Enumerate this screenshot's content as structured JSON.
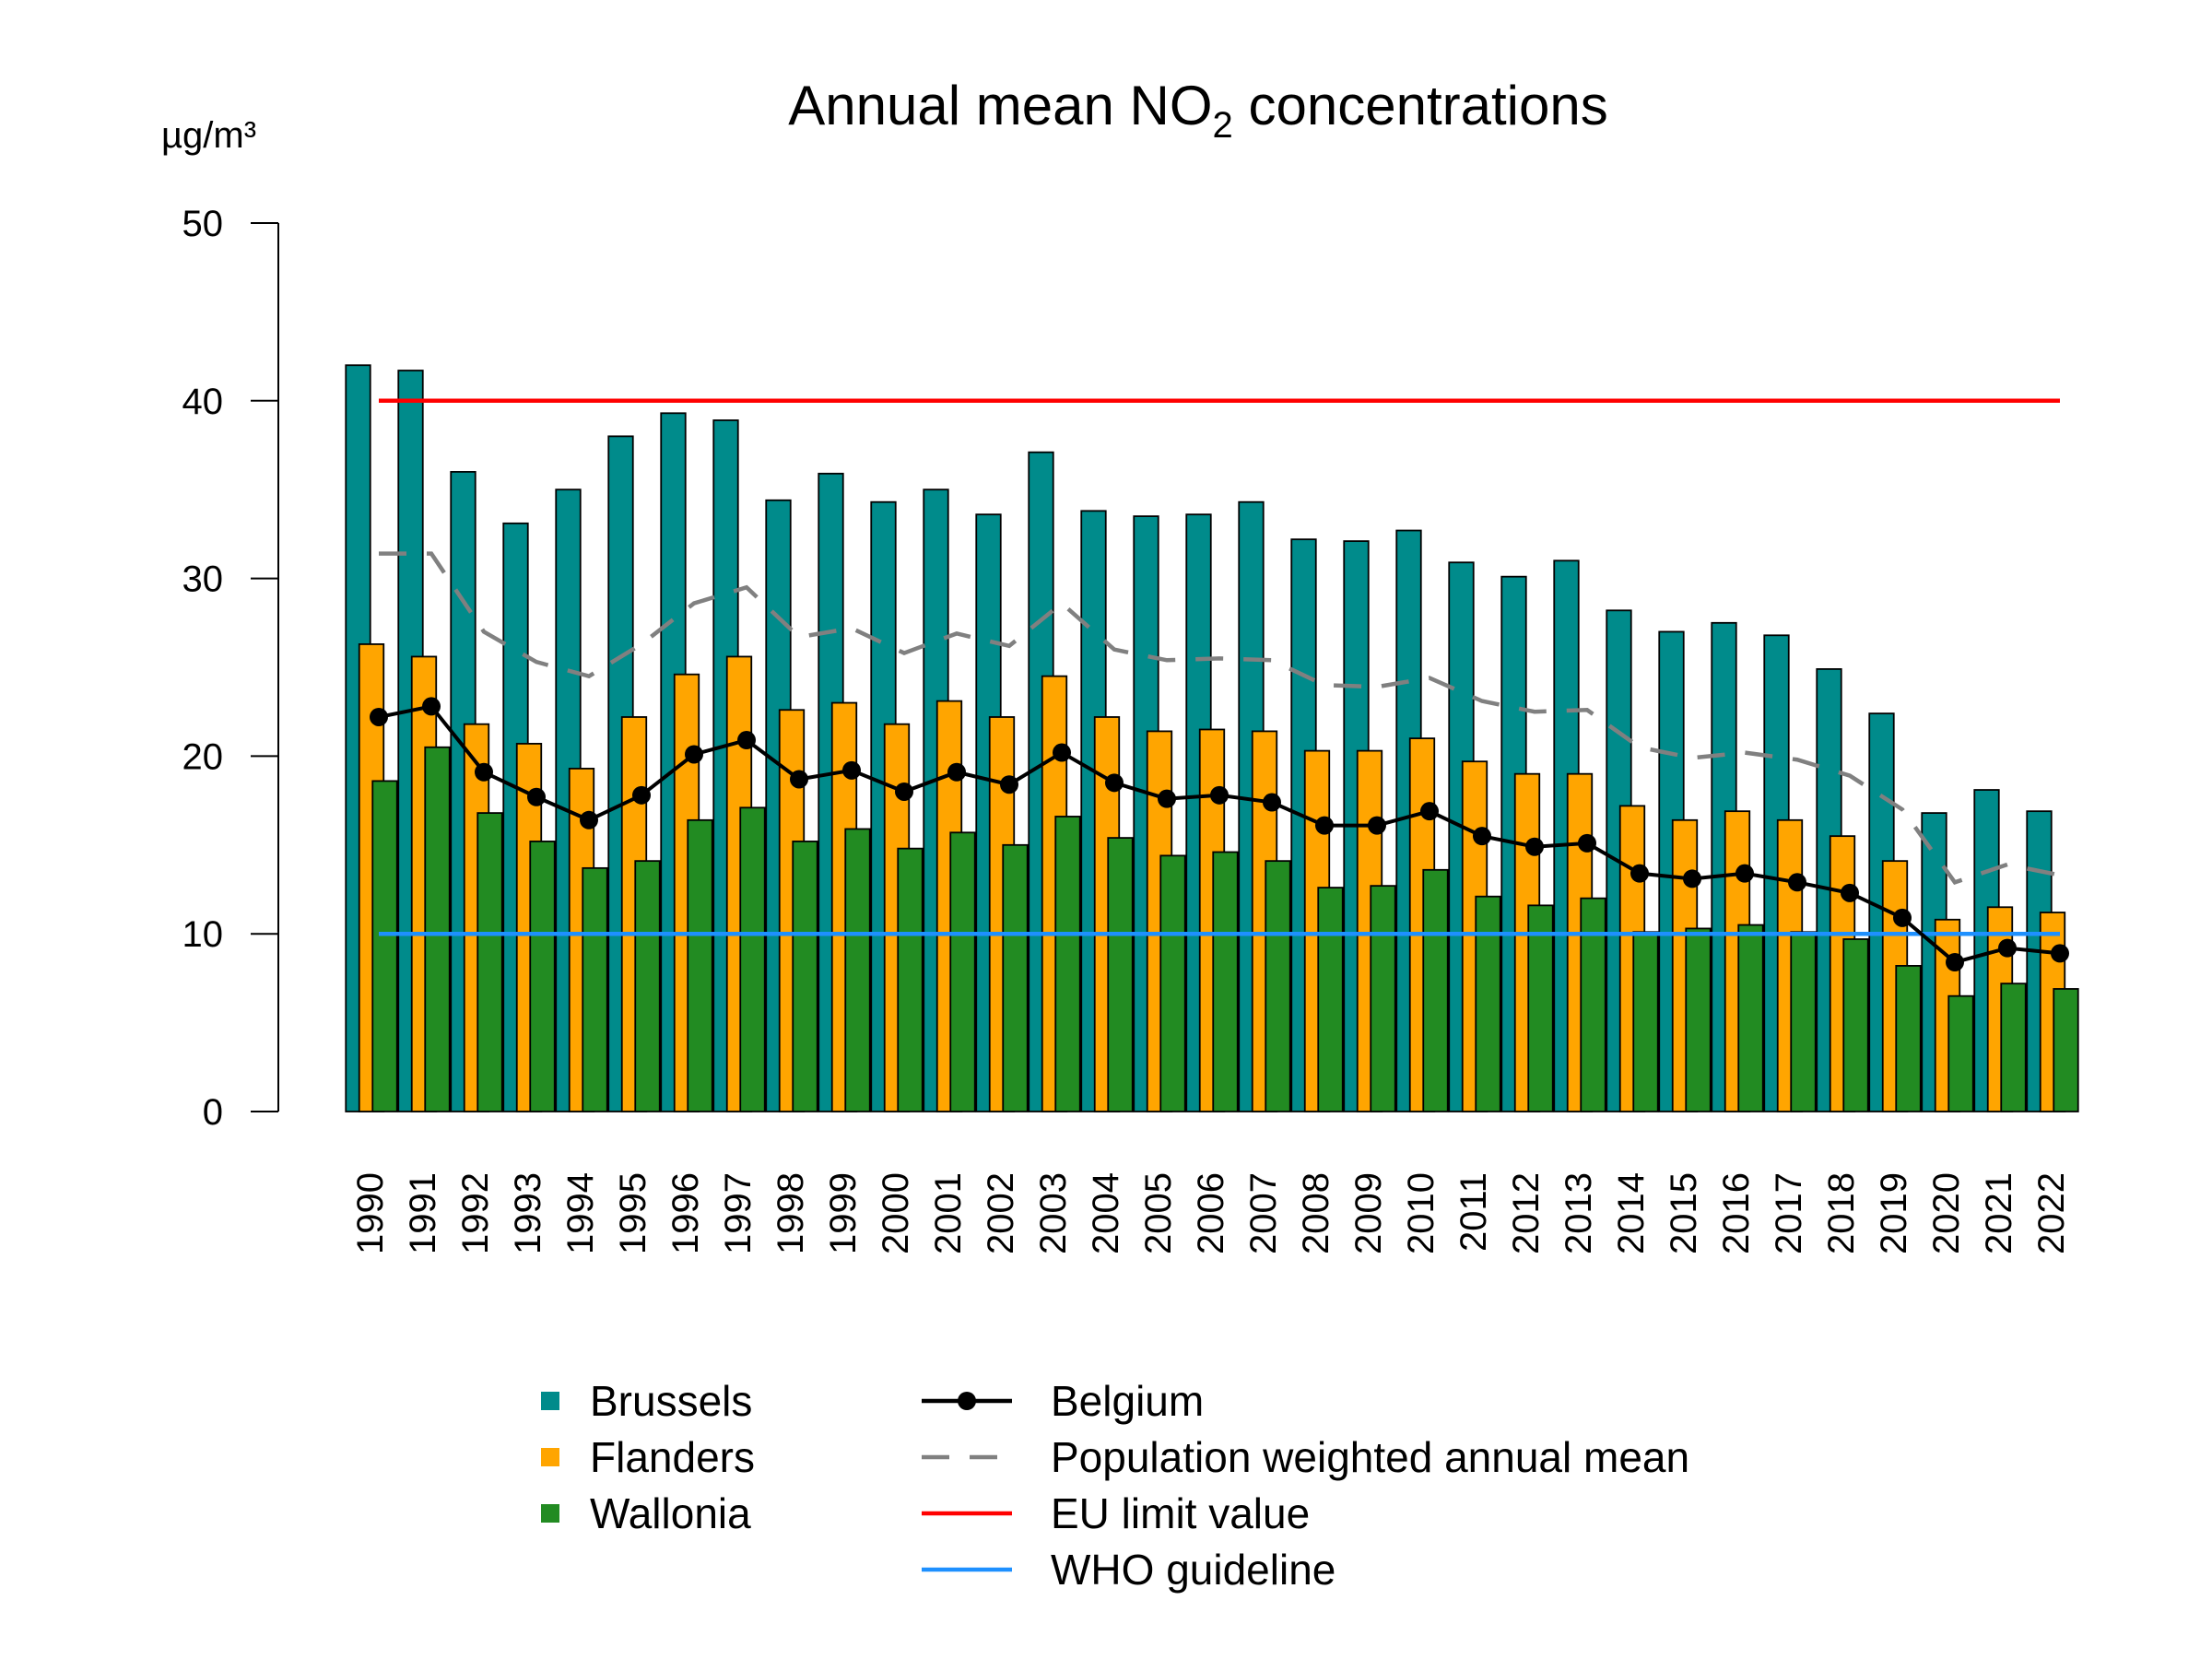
{
  "chart_data": {
    "type": "bar",
    "title": {
      "prefix": "Annual mean NO",
      "subscript": "2",
      "suffix": " concentrations"
    },
    "unit_label": "µg/m³",
    "ylim": [
      0,
      50
    ],
    "yticks": [
      "0",
      "10",
      "20",
      "30",
      "40",
      "50"
    ],
    "categories": [
      "1990",
      "1991",
      "1992",
      "1993",
      "1994",
      "1995",
      "1996",
      "1997",
      "1998",
      "1999",
      "2000",
      "2001",
      "2002",
      "2003",
      "2004",
      "2005",
      "2006",
      "2007",
      "2008",
      "2009",
      "2010",
      "2011",
      "2012",
      "2013",
      "2014",
      "2015",
      "2016",
      "2017",
      "2018",
      "2019",
      "2020",
      "2021",
      "2022"
    ],
    "series": [
      {
        "name": "Brussels",
        "color": "#008B8B",
        "values": [
          42.0,
          41.7,
          36.0,
          33.1,
          35.0,
          38.0,
          39.3,
          38.9,
          34.4,
          35.9,
          34.3,
          35.0,
          33.6,
          37.1,
          33.8,
          33.5,
          33.6,
          34.3,
          32.2,
          32.1,
          32.7,
          30.9,
          30.1,
          31.0,
          28.2,
          27.0,
          27.5,
          26.8,
          24.9,
          22.4,
          16.8,
          18.1,
          16.9
        ]
      },
      {
        "name": "Flanders",
        "color": "#FFA500",
        "values": [
          26.3,
          25.6,
          21.8,
          20.7,
          19.3,
          22.2,
          24.6,
          25.6,
          22.6,
          23.0,
          21.8,
          23.1,
          22.2,
          24.5,
          22.2,
          21.4,
          21.5,
          21.4,
          20.3,
          20.3,
          21.0,
          19.7,
          19.0,
          19.0,
          17.2,
          16.4,
          16.9,
          16.4,
          15.5,
          14.1,
          10.8,
          11.5,
          11.2
        ]
      },
      {
        "name": "Wallonia",
        "color": "#228B22",
        "values": [
          18.6,
          20.5,
          16.8,
          15.2,
          13.7,
          14.1,
          16.4,
          17.1,
          15.2,
          15.9,
          14.8,
          15.7,
          15.0,
          16.6,
          15.4,
          14.4,
          14.6,
          14.1,
          12.6,
          12.7,
          13.6,
          12.1,
          11.6,
          12.0,
          10.1,
          10.3,
          10.5,
          10.1,
          9.7,
          8.2,
          6.5,
          7.2,
          6.9
        ]
      }
    ],
    "lines": [
      {
        "name": "Belgium",
        "color": "#000000",
        "style": "solid-with-points",
        "values": [
          22.2,
          22.8,
          19.1,
          17.7,
          16.4,
          17.8,
          20.1,
          20.9,
          18.7,
          19.2,
          18.0,
          19.1,
          18.4,
          20.2,
          18.5,
          17.6,
          17.8,
          17.4,
          16.1,
          16.1,
          16.9,
          15.5,
          14.9,
          15.1,
          13.4,
          13.1,
          13.4,
          12.9,
          12.3,
          10.9,
          8.4,
          9.2,
          8.9
        ]
      },
      {
        "name": "Population weighted annual mean",
        "color": "#808080",
        "style": "dashed",
        "values": [
          31.4,
          31.4,
          27.0,
          25.3,
          24.5,
          26.3,
          28.6,
          29.5,
          26.7,
          27.2,
          25.8,
          26.9,
          26.2,
          28.6,
          26.0,
          25.4,
          25.5,
          25.4,
          24.0,
          23.9,
          24.4,
          23.1,
          22.5,
          22.6,
          20.5,
          19.9,
          20.2,
          19.8,
          18.9,
          17.0,
          12.9,
          13.9,
          13.3
        ]
      },
      {
        "name": "EU limit value",
        "color": "#FF0000",
        "style": "solid",
        "value": 40
      },
      {
        "name": "WHO guideline",
        "color": "#1E90FF",
        "style": "solid",
        "value": 10
      }
    ]
  }
}
